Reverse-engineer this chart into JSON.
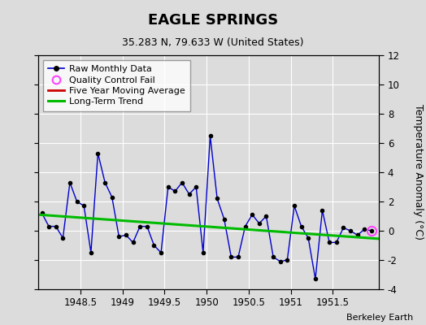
{
  "title": "EAGLE SPRINGS",
  "subtitle": "35.283 N, 79.633 W (United States)",
  "attribution": "Berkeley Earth",
  "ylabel": "Temperature Anomaly (°C)",
  "xlim": [
    1948.0,
    1952.05
  ],
  "ylim": [
    -4,
    12
  ],
  "yticks": [
    -4,
    -2,
    0,
    2,
    4,
    6,
    8,
    10,
    12
  ],
  "xticks": [
    1948.5,
    1949.0,
    1949.5,
    1950.0,
    1950.5,
    1951.0,
    1951.5
  ],
  "xticklabels": [
    "1948.5",
    "1949",
    "1949.5",
    "1950",
    "1950.5",
    "1951",
    "1951.5"
  ],
  "background_color": "#dcdcdc",
  "raw_x": [
    1948.042,
    1948.125,
    1948.208,
    1948.292,
    1948.375,
    1948.458,
    1948.542,
    1948.625,
    1948.708,
    1948.792,
    1948.875,
    1948.958,
    1949.042,
    1949.125,
    1949.208,
    1949.292,
    1949.375,
    1949.458,
    1949.542,
    1949.625,
    1949.708,
    1949.792,
    1949.875,
    1949.958,
    1950.042,
    1950.125,
    1950.208,
    1950.292,
    1950.375,
    1950.458,
    1950.542,
    1950.625,
    1950.708,
    1950.792,
    1950.875,
    1950.958,
    1951.042,
    1951.125,
    1951.208,
    1951.292,
    1951.375,
    1951.458,
    1951.542,
    1951.625,
    1951.708,
    1951.792,
    1951.875,
    1951.958
  ],
  "raw_y": [
    1.2,
    0.3,
    0.3,
    -0.5,
    3.3,
    2.0,
    1.7,
    -1.5,
    5.3,
    3.3,
    2.3,
    -0.4,
    -0.3,
    -0.8,
    0.3,
    0.3,
    -1.0,
    -1.5,
    3.0,
    2.7,
    3.3,
    2.5,
    3.0,
    -1.5,
    6.5,
    2.2,
    0.8,
    -1.8,
    -1.8,
    0.3,
    1.1,
    0.5,
    1.0,
    -1.8,
    -2.1,
    -2.0,
    1.7,
    0.3,
    -0.5,
    -3.3,
    1.4,
    -0.8,
    -0.8,
    0.2,
    0.0,
    -0.3,
    0.1,
    0.0
  ],
  "qc_fail_x": [
    1951.958
  ],
  "qc_fail_y": [
    0.0
  ],
  "trend_x": [
    1948.0,
    1952.05
  ],
  "trend_y": [
    1.1,
    -0.55
  ],
  "raw_color": "#0000cc",
  "raw_marker_color": "#000000",
  "trend_color": "#00bb00",
  "moving_avg_color": "#cc0000",
  "qc_color": "#ff44ff",
  "grid_color": "#ffffff"
}
